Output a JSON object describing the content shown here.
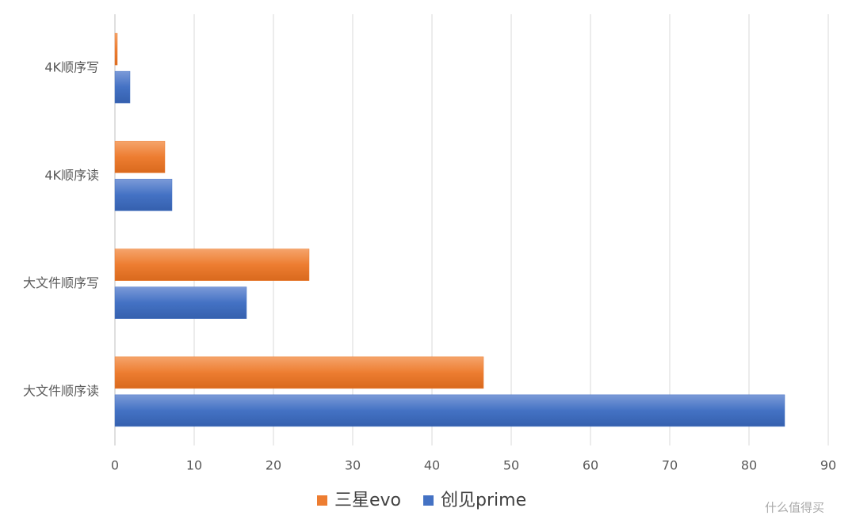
{
  "chart_data": {
    "type": "hbar",
    "categories": [
      "大文件顺序读",
      "大文件顺序写",
      "4K顺序读",
      "4K顺序写"
    ],
    "series": [
      {
        "name": "三星evo",
        "color": "#ed7d31",
        "values": [
          46.5,
          24.5,
          6.3,
          0.3
        ]
      },
      {
        "name": "创见prime",
        "color": "#4472c4",
        "values": [
          84.5,
          16.6,
          7.2,
          1.9
        ]
      }
    ],
    "xlim": [
      0,
      90
    ],
    "xticks": [
      0,
      10,
      20,
      30,
      40,
      50,
      60,
      70,
      80,
      90
    ],
    "grid": true,
    "legend": "bottom"
  },
  "watermark": "什么值得买"
}
